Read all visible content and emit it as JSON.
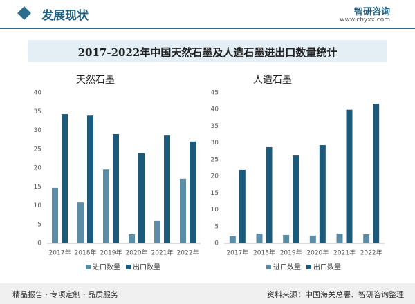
{
  "header": {
    "title": "发展现状",
    "logo": "智研咨询",
    "url": "www.chyxx.com"
  },
  "title": "2017-2022年中国天然石墨及人造石墨进出口数量统计",
  "chart_data": [
    {
      "type": "bar",
      "title": "天然石墨",
      "categories": [
        "2017年",
        "2018年",
        "2019年",
        "2020年",
        "2021年",
        "2022年"
      ],
      "series": [
        {
          "name": "进口数量",
          "color": "#5b8ea6",
          "values": [
            14.7,
            10.8,
            19.6,
            2.4,
            5.9,
            17.1
          ]
        },
        {
          "name": "出口数量",
          "color": "#1b5a7a",
          "values": [
            34.3,
            33.9,
            29.0,
            23.9,
            28.6,
            27.0
          ]
        }
      ],
      "ylim": [
        0,
        40
      ],
      "yticks": [
        0,
        5,
        10,
        15,
        20,
        25,
        30,
        35,
        40
      ],
      "grid": false
    },
    {
      "type": "bar",
      "title": "人造石墨",
      "categories": [
        "2017年",
        "2018年",
        "2019年",
        "2020年",
        "2021年",
        "2022年"
      ],
      "series": [
        {
          "name": "进口数量",
          "color": "#5b8ea6",
          "values": [
            2.1,
            2.9,
            2.5,
            2.3,
            2.9,
            2.7
          ]
        },
        {
          "name": "出口数量",
          "color": "#1b5a7a",
          "values": [
            21.9,
            28.7,
            26.2,
            29.3,
            39.9,
            41.7
          ]
        }
      ],
      "ylim": [
        0,
        45
      ],
      "yticks": [
        0,
        5,
        10,
        15,
        20,
        25,
        30,
        35,
        40,
        45
      ],
      "grid": false
    }
  ],
  "footer": {
    "slogan": "精品报告 · 专项定制 · 品质服务",
    "source": "资料来源：中国海关总署、智研咨询整理"
  }
}
